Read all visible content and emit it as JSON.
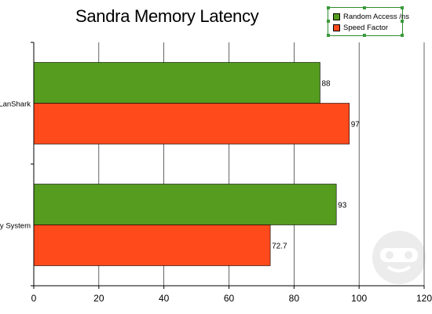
{
  "chart_data": {
    "type": "bar",
    "orientation": "horizontal",
    "title": "Sandra Memory Latency",
    "categories": [
      "LanShark",
      "My System"
    ],
    "series": [
      {
        "name": "Random Access /ns",
        "color": "#559c1f",
        "values": [
          88,
          93
        ]
      },
      {
        "name": "Speed Factor",
        "color": "#ff4a1c",
        "values": [
          97,
          72.7
        ]
      }
    ],
    "data_labels": [
      [
        "88",
        "97"
      ],
      [
        "93",
        "72.7"
      ]
    ],
    "x_ticks": [
      "0",
      "20",
      "40",
      "60",
      "80",
      "100",
      "120"
    ],
    "xlim": [
      0,
      120
    ],
    "xlabel": "",
    "ylabel": "",
    "grid": "vertical",
    "legend_position": "top-right"
  }
}
